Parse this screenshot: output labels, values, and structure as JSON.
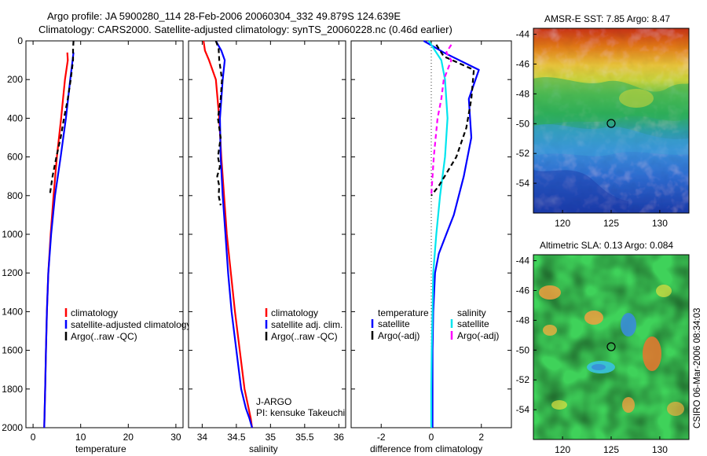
{
  "header": {
    "line1": "Argo profile: JA 5900280_114 28-Feb-2006 20060304_332 49.879S 124.639E",
    "line2": "Climatology: CARS2000. Satellite-adjusted climatology: synTS_20060228.nc (0.46d earlier)"
  },
  "colors": {
    "climatology": "#ff0000",
    "satellite": "#0000ff",
    "argo": "#000000",
    "satellite_salinity": "#00e5ee",
    "argo_salinity": "#ff00ff"
  },
  "chart_data": [
    {
      "id": "temperature",
      "type": "line",
      "xlabel": "temperature",
      "xlim": [
        -1.5,
        31.5
      ],
      "ylim": [
        2000,
        0
      ],
      "xticks": [
        "0",
        "10",
        "20",
        "30"
      ],
      "yticks": [
        "0",
        "200",
        "400",
        "600",
        "800",
        "1000",
        "1200",
        "1400",
        "1600",
        "1800",
        "2000"
      ],
      "series": [
        {
          "name": "climatology",
          "color": "#ff0000",
          "dash": "",
          "x": [
            7.2,
            7.3,
            6.7,
            5.9,
            5.0,
            4.3,
            3.7,
            3.2,
            2.9,
            2.7,
            2.55,
            2.45,
            2.4,
            2.35
          ],
          "y": [
            60,
            100,
            200,
            400,
            600,
            800,
            1000,
            1200,
            1400,
            1600,
            1800,
            1900,
            1950,
            2000
          ]
        },
        {
          "name": "satellite-adjusted climatology",
          "color": "#0000ff",
          "dash": "",
          "x": [
            8.5,
            8.3,
            7.8,
            6.9,
            5.8,
            4.6,
            3.8,
            3.2,
            2.9,
            2.7,
            2.55,
            2.45,
            2.4,
            2.35
          ],
          "y": [
            60,
            100,
            200,
            400,
            600,
            800,
            1000,
            1200,
            1400,
            1600,
            1800,
            1900,
            1950,
            2000
          ]
        },
        {
          "name": "Argo(..raw -QC)",
          "color": "#000000",
          "dash": "6,4",
          "x": [
            8.5,
            8.4,
            8.4,
            7.9,
            7.3,
            6.5,
            5.8,
            4.9,
            4.1,
            3.5
          ],
          "y": [
            0,
            40,
            100,
            200,
            300,
            400,
            500,
            600,
            700,
            800
          ]
        }
      ],
      "legend": [
        "climatology",
        "satellite-adjusted climatology",
        "Argo(..raw -QC)"
      ]
    },
    {
      "id": "salinity",
      "type": "line",
      "xlabel": "salinity",
      "xlim": [
        33.8,
        36.1
      ],
      "ylim": [
        2000,
        0
      ],
      "xticks": [
        "34",
        "34.5",
        "35",
        "35.5",
        "36"
      ],
      "series": [
        {
          "name": "climatology",
          "color": "#ff0000",
          "dash": "",
          "x": [
            34.02,
            34.04,
            34.1,
            34.2,
            34.25,
            34.28,
            34.32,
            34.36,
            34.42,
            34.48,
            34.55,
            34.62,
            34.68,
            34.71,
            34.73
          ],
          "y": [
            0,
            50,
            100,
            200,
            400,
            600,
            800,
            1000,
            1200,
            1400,
            1600,
            1800,
            1900,
            1950,
            2000
          ]
        },
        {
          "name": "satellite adj. clim.",
          "color": "#0000ff",
          "dash": "",
          "x": [
            34.2,
            34.28,
            34.33,
            34.3,
            34.26,
            34.27,
            34.3,
            34.34,
            34.38,
            34.43,
            34.5,
            34.57,
            34.64,
            34.69,
            34.73
          ],
          "y": [
            0,
            50,
            100,
            200,
            400,
            600,
            800,
            1000,
            1200,
            1400,
            1600,
            1800,
            1900,
            1950,
            2000
          ]
        },
        {
          "name": "Argo(..raw -QC)",
          "color": "#000000",
          "dash": "6,4",
          "x": [
            34.2,
            34.24,
            34.25,
            34.29,
            34.27,
            34.23,
            34.27,
            34.23,
            34.26,
            34.22,
            34.25,
            34.24,
            34.27
          ],
          "y": [
            0,
            40,
            100,
            200,
            300,
            400,
            500,
            600,
            650,
            700,
            750,
            800,
            850
          ]
        }
      ],
      "legend": [
        "climatology",
        "satellite adj. clim.",
        "Argo(..raw -QC)"
      ],
      "annotation": [
        "J-ARGO",
        "PI: kensuke Takeuchi"
      ]
    },
    {
      "id": "difference",
      "type": "line",
      "xlabel": "difference from climatology",
      "xlim": [
        -3.2,
        3.2
      ],
      "ylim": [
        2000,
        0
      ],
      "xticks": [
        "-2",
        "0",
        "2"
      ],
      "series": [
        {
          "name": "temperature satellite",
          "color": "#0000ff",
          "dash": "",
          "x": [
            -0.3,
            0.5,
            1.9,
            1.5,
            1.6,
            1.3,
            0.9,
            0.6,
            0.3,
            0.15,
            0.08,
            0.05,
            0.05,
            0.05
          ],
          "y": [
            0,
            60,
            150,
            300,
            500,
            700,
            900,
            1000,
            1100,
            1200,
            1400,
            1600,
            1800,
            2000
          ]
        },
        {
          "name": "salinity satellite",
          "color": "#00e5ee",
          "dash": "",
          "x": [
            -0.1,
            0.2,
            0.4,
            0.55,
            0.65,
            0.55,
            0.35,
            0.2,
            0.08,
            0.05,
            0.02,
            0.0,
            0.0
          ],
          "y": [
            0,
            60,
            100,
            200,
            400,
            600,
            800,
            1000,
            1200,
            1400,
            1600,
            1800,
            2000
          ]
        },
        {
          "name": "temperature Argo(-adj)",
          "color": "#000000",
          "dash": "6,4",
          "x": [
            0.2,
            0.5,
            1.7,
            1.6,
            1.4,
            1.0,
            0.3,
            0.0
          ],
          "y": [
            20,
            80,
            150,
            300,
            450,
            600,
            750,
            800
          ]
        },
        {
          "name": "salinity Argo(-adj)",
          "color": "#ff00ff",
          "dash": "6,4",
          "x": [
            0.8,
            0.6,
            0.8,
            0.5,
            0.4,
            0.25,
            0.1,
            0.0
          ],
          "y": [
            20,
            60,
            100,
            200,
            300,
            400,
            600,
            800
          ]
        }
      ],
      "legend_col1_title": "temperature",
      "legend_col2_title": "salinity",
      "legend": [
        "satellite",
        "Argo(-adj)",
        "satellite",
        "Argo(-adj)"
      ]
    }
  ],
  "maps": [
    {
      "id": "sst",
      "title": "AMSR-E SST: 7.85 Argo: 8.47",
      "xticks": [
        "120",
        "125",
        "130"
      ],
      "yticks": [
        "-44",
        "-46",
        "-48",
        "-50",
        "-52",
        "-54"
      ],
      "marker": {
        "lon": 124.639,
        "lat": -49.879
      }
    },
    {
      "id": "sla",
      "title": "Altimetric SLA: 0.13 Argo: 0.084",
      "xticks": [
        "120",
        "125",
        "130"
      ],
      "yticks": [
        "-44",
        "-46",
        "-48",
        "-50",
        "-52",
        "-54"
      ],
      "marker": {
        "lon": 124.639,
        "lat": -49.879
      }
    }
  ],
  "footer_credit": "CSIRO 06-Mar-2006 08:34:03"
}
